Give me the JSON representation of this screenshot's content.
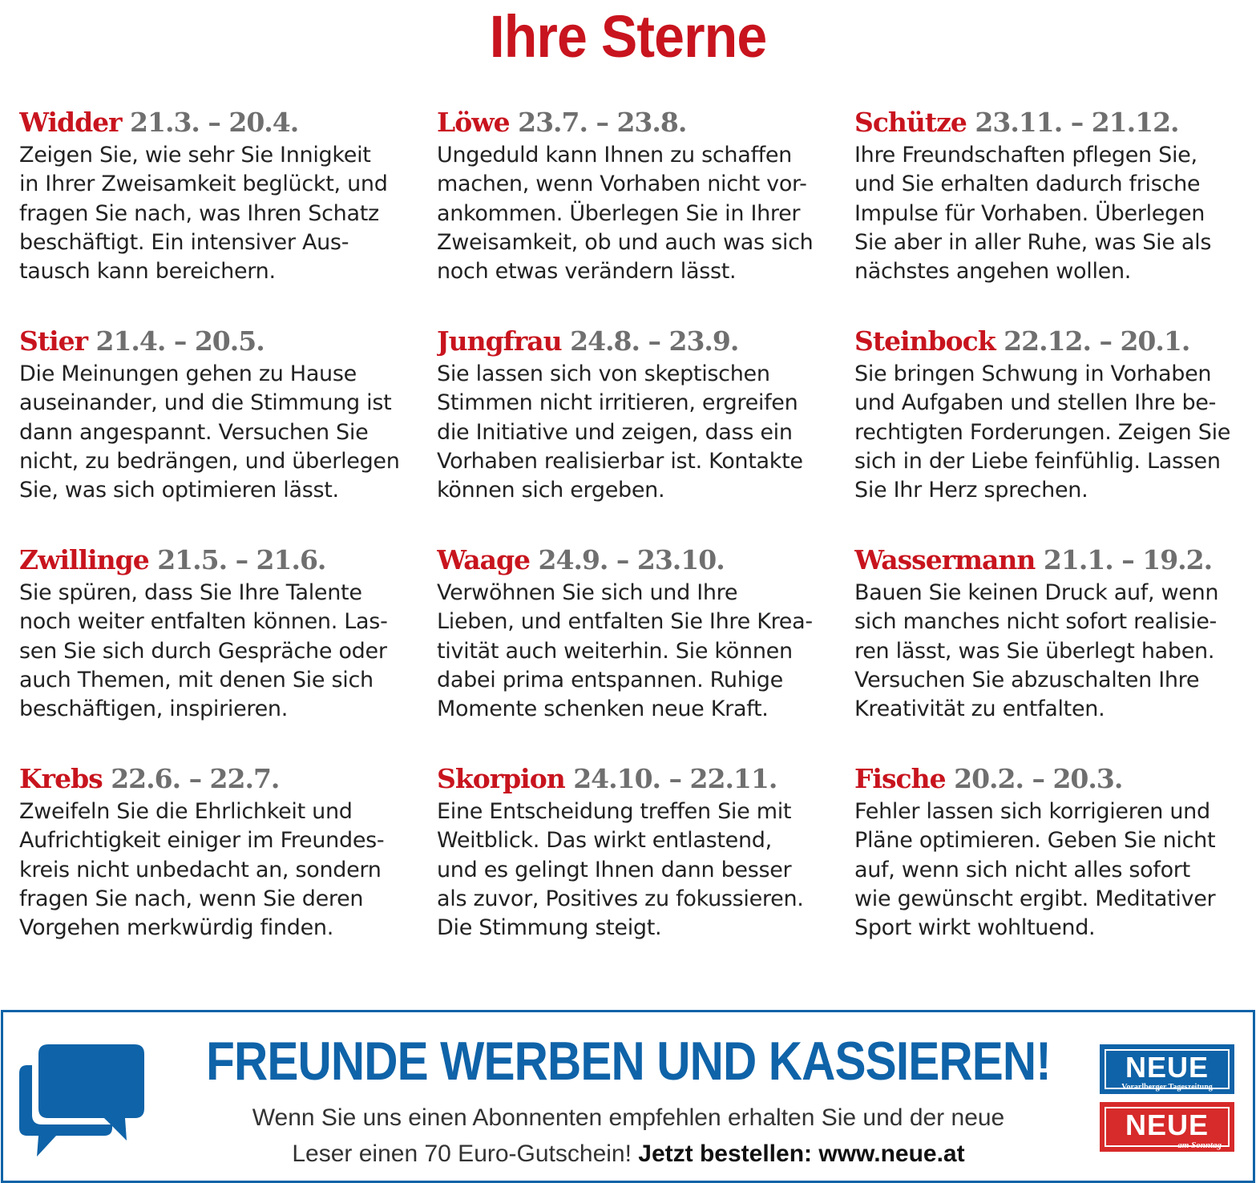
{
  "title": "Ihre Sterne",
  "horoscopes": [
    {
      "sign": "Widder",
      "dates": "21.3. – 20.4.",
      "text": "Zeigen Sie, wie sehr Sie Innigkeit\nin Ihrer Zweisamkeit beglückt, und\nfragen Sie nach, was Ihren Schatz\nbeschäftigt. Ein intensiver Aus-\ntausch kann bereichern."
    },
    {
      "sign": "Löwe",
      "dates": "23.7. – 23.8.",
      "text": "Ungeduld kann Ihnen zu schaffen\nmachen, wenn Vorhaben nicht vor-\nankommen. Überlegen Sie in Ihrer\nZweisamkeit, ob und auch was sich\nnoch etwas verändern lässt."
    },
    {
      "sign": "Schütze",
      "dates": "23.11. – 21.12.",
      "text": "Ihre Freundschaften pflegen Sie,\nund Sie erhalten dadurch frische\nImpulse für Vorhaben. Überlegen\nSie aber in aller Ruhe, was Sie als\nnächstes angehen wollen."
    },
    {
      "sign": "Stier",
      "dates": "21.4. – 20.5.",
      "text": "Die Meinungen gehen zu Hause\nauseinander, und die Stimmung ist\ndann angespannt. Versuchen Sie\nnicht, zu bedrängen, und überlegen\nSie, was sich optimieren lässt."
    },
    {
      "sign": "Jungfrau",
      "dates": "24.8. – 23.9.",
      "text": "Sie lassen sich von skeptischen\nStimmen nicht irritieren, ergreifen\ndie Initiative und zeigen, dass ein\nVorhaben realisierbar ist. Kontakte\nkönnen sich ergeben."
    },
    {
      "sign": "Steinbock",
      "dates": "22.12. – 20.1.",
      "text": "Sie bringen Schwung in Vorhaben\nund Aufgaben und stellen Ihre be-\nrechtigten Forderungen. Zeigen Sie\nsich in der Liebe feinfühlig. Lassen\nSie Ihr Herz sprechen."
    },
    {
      "sign": "Zwillinge",
      "dates": "21.5. – 21.6.",
      "text": "Sie spüren, dass Sie Ihre Talente\nnoch weiter entfalten können. Las-\nsen Sie sich durch Gespräche oder\nauch Themen, mit denen Sie sich\nbeschäftigen, inspirieren."
    },
    {
      "sign": "Waage",
      "dates": "24.9. – 23.10.",
      "text": "Verwöhnen Sie sich und Ihre\nLieben, und entfalten Sie Ihre Krea-\ntivität auch weiterhin. Sie können\ndabei prima entspannen. Ruhige\nMomente schenken neue Kraft."
    },
    {
      "sign": "Wassermann",
      "dates": "21.1. – 19.2.",
      "text": "Bauen Sie keinen Druck auf, wenn\nsich manches nicht sofort realisie-\nren lässt, was Sie überlegt haben.\nVersuchen Sie abzuschalten Ihre\nKreativität zu entfalten."
    },
    {
      "sign": "Krebs",
      "dates": "22.6. – 22.7.",
      "text": "Zweifeln Sie die Ehrlichkeit und\nAufrichtigkeit einiger im Freundes-\nkreis nicht unbedacht an, sondern\nfragen Sie nach, wenn Sie deren\nVorgehen merkwürdig finden."
    },
    {
      "sign": "Skorpion",
      "dates": "24.10. – 22.11.",
      "text": "Eine Entscheidung treffen Sie mit\nWeitblick. Das wirkt entlastend,\nund es gelingt Ihnen dann besser\nals zuvor, Positives zu fokussieren.\nDie Stimmung steigt."
    },
    {
      "sign": "Fische",
      "dates": "20.2. – 20.3.",
      "text": "Fehler lassen sich korrigieren und\nPläne optimieren. Geben Sie nicht\nauf, wenn sich nicht alles sofort\nwie gewünscht ergibt. Meditativer\nSport wirkt wohltuend."
    }
  ],
  "banner": {
    "headline": "FREUNDE WERBEN UND KASSIEREN!",
    "line1": "Wenn Sie uns einen Abonnenten empfehlen erhalten Sie und der neue",
    "line2": "Leser einen 70 Euro-Gutschein!",
    "cta": "Jetzt bestellen: www.neue.at",
    "icon": "speech-bubbles-icon",
    "colors": {
      "blue": "#0f63a8",
      "red": "#d72a2a",
      "title_red": "#c8141e"
    },
    "logos": [
      {
        "word": "NEUE",
        "sub": "Vorarlberger Tageszeitung"
      },
      {
        "word": "NEUE",
        "sub": "am Sonntag"
      }
    ]
  }
}
